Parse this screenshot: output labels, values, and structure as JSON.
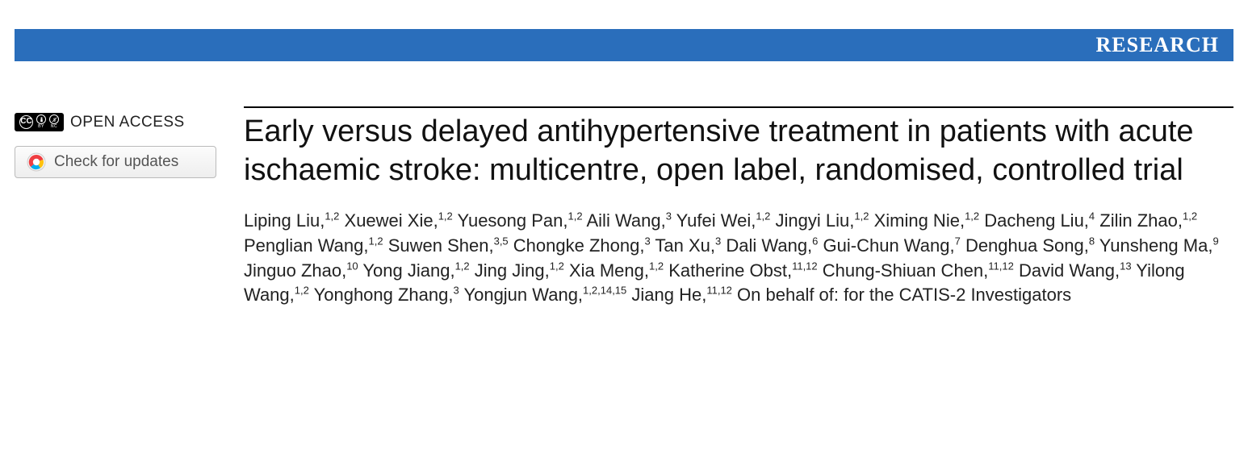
{
  "banner": {
    "label": "RESEARCH",
    "background_color": "#2a6ebb",
    "text_color": "#ffffff"
  },
  "sidebar": {
    "open_access_label": "OPEN ACCESS",
    "cc_label": "CC",
    "cc_by": "BY",
    "cc_nc": "NC",
    "updates_label": "Check for updates"
  },
  "article": {
    "title": "Early versus delayed antihypertensive treatment in patients with acute ischaemic stroke: multicentre, open label, randomised, controlled trial",
    "authors": [
      {
        "name": "Liping Liu",
        "aff": "1,2"
      },
      {
        "name": "Xuewei Xie",
        "aff": "1,2"
      },
      {
        "name": "Yuesong Pan",
        "aff": "1,2"
      },
      {
        "name": "Aili Wang",
        "aff": "3"
      },
      {
        "name": "Yufei Wei",
        "aff": "1,2"
      },
      {
        "name": "Jingyi Liu",
        "aff": "1,2"
      },
      {
        "name": "Ximing Nie",
        "aff": "1,2"
      },
      {
        "name": "Dacheng Liu",
        "aff": "4"
      },
      {
        "name": "Zilin Zhao",
        "aff": "1,2"
      },
      {
        "name": "Penglian Wang",
        "aff": "1,2"
      },
      {
        "name": "Suwen Shen",
        "aff": "3,5"
      },
      {
        "name": "Chongke Zhong",
        "aff": "3"
      },
      {
        "name": "Tan Xu",
        "aff": "3"
      },
      {
        "name": "Dali Wang",
        "aff": "6"
      },
      {
        "name": "Gui-Chun Wang",
        "aff": "7"
      },
      {
        "name": "Denghua Song",
        "aff": "8"
      },
      {
        "name": "Yunsheng Ma",
        "aff": "9"
      },
      {
        "name": "Jinguo Zhao",
        "aff": "10"
      },
      {
        "name": "Yong Jiang",
        "aff": "1,2"
      },
      {
        "name": "Jing Jing",
        "aff": "1,2"
      },
      {
        "name": "Xia Meng",
        "aff": "1,2"
      },
      {
        "name": "Katherine Obst",
        "aff": "11,12"
      },
      {
        "name": "Chung-Shiuan Chen",
        "aff": "11,12"
      },
      {
        "name": "David Wang",
        "aff": "13"
      },
      {
        "name": "Yilong Wang",
        "aff": "1,2"
      },
      {
        "name": "Yonghong Zhang",
        "aff": "3"
      },
      {
        "name": "Yongjun Wang",
        "aff": "1,2,14,15"
      },
      {
        "name": "Jiang He",
        "aff": "11,12"
      }
    ],
    "behalf": "On behalf of: for the CATIS-2 Investigators"
  },
  "style": {
    "title_fontsize": 38,
    "author_fontsize": 22,
    "title_color": "#111111",
    "author_color": "#222222",
    "rule_color": "#000000"
  }
}
